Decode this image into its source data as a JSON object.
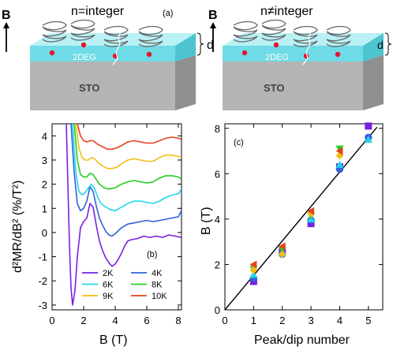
{
  "panel_a": {
    "title": "n=integer",
    "label": "(a)",
    "field_label": "B",
    "layer_label": "2DEG",
    "substrate_label": "STO",
    "thickness_label": "d"
  },
  "panel_b_schematic": {
    "title": "n≠integer",
    "field_label": "B",
    "layer_label": "2DEG",
    "substrate_label": "STO",
    "thickness_label": "d"
  },
  "colors": {
    "film": "#7fe3ec",
    "substrate": "#b4b4b4",
    "electron": "#e8132b",
    "2K": "#7a1fe0",
    "4K": "#2f62d8",
    "6K": "#22d6ee",
    "8K": "#27cc21",
    "9K": "#f2bd16",
    "10K": "#e3431c"
  },
  "chart_data": [
    {
      "type": "line",
      "panel_label": "(b)",
      "xlabel": "B (T)",
      "ylabel": "d²MR/dB² (%/T²)",
      "xlim": [
        0,
        8.2
      ],
      "ylim": [
        -3.2,
        4.5
      ],
      "xticks": [
        0,
        2,
        4,
        6,
        8
      ],
      "yticks": [
        -3,
        -2,
        -1,
        0,
        1,
        2,
        3,
        4
      ],
      "legend_position": "bottom-right",
      "series": [
        {
          "name": "2K",
          "color": "#7a1fe0",
          "x": [
            0.9,
            1.0,
            1.1,
            1.2,
            1.3,
            1.45,
            1.6,
            1.8,
            2.0,
            2.2,
            2.4,
            2.6,
            2.8,
            3.0,
            3.2,
            3.4,
            3.6,
            3.8,
            4.0,
            4.2,
            4.4,
            4.6,
            4.8,
            5.0,
            5.4,
            5.8,
            6.2,
            6.6,
            7.0,
            7.4,
            7.8,
            8.2
          ],
          "y": [
            4.5,
            2.0,
            -0.5,
            -2.3,
            -3.0,
            -2.4,
            -1.0,
            0.2,
            0.45,
            0.6,
            1.2,
            1.05,
            0.3,
            -0.35,
            -0.75,
            -1.05,
            -1.25,
            -1.4,
            -1.3,
            -1.1,
            -0.85,
            -0.55,
            -0.35,
            -0.3,
            -0.25,
            -0.15,
            -0.2,
            -0.15,
            -0.2,
            -0.1,
            -0.15,
            -0.2
          ]
        },
        {
          "name": "4K",
          "color": "#2f62d8",
          "x": [
            1.2,
            1.4,
            1.6,
            1.8,
            2.0,
            2.2,
            2.4,
            2.6,
            2.8,
            3.0,
            3.2,
            3.4,
            3.6,
            3.8,
            4.0,
            4.4,
            4.8,
            5.2,
            5.6,
            6.0,
            6.4,
            6.8,
            7.2,
            7.6,
            8.0,
            8.2
          ],
          "y": [
            4.5,
            2.5,
            1.2,
            0.9,
            1.0,
            1.3,
            1.9,
            1.7,
            1.1,
            0.6,
            0.3,
            0.05,
            -0.1,
            -0.15,
            -0.05,
            0.2,
            0.35,
            0.4,
            0.45,
            0.5,
            0.45,
            0.5,
            0.55,
            0.6,
            0.65,
            0.9
          ]
        },
        {
          "name": "6K",
          "color": "#22d6ee",
          "x": [
            1.3,
            1.5,
            1.7,
            1.9,
            2.1,
            2.3,
            2.5,
            2.7,
            2.9,
            3.1,
            3.4,
            3.7,
            4.0,
            4.4,
            4.8,
            5.2,
            5.6,
            6.0,
            6.4,
            6.8,
            7.2,
            7.6,
            8.0,
            8.2
          ],
          "y": [
            4.5,
            2.5,
            1.7,
            1.55,
            1.65,
            1.85,
            2.0,
            1.8,
            1.45,
            1.2,
            1.05,
            0.95,
            0.9,
            1.05,
            1.2,
            1.3,
            1.3,
            1.25,
            1.2,
            1.3,
            1.45,
            1.55,
            1.6,
            1.8
          ]
        },
        {
          "name": "8K",
          "color": "#27cc21",
          "x": [
            1.4,
            1.6,
            1.8,
            2.0,
            2.2,
            2.4,
            2.6,
            2.8,
            3.0,
            3.3,
            3.6,
            4.0,
            4.4,
            4.8,
            5.2,
            5.6,
            6.0,
            6.4,
            6.8,
            7.2,
            7.6,
            8.0,
            8.2
          ],
          "y": [
            4.5,
            3.0,
            2.4,
            2.3,
            2.3,
            2.45,
            2.4,
            2.2,
            2.0,
            1.85,
            1.8,
            1.85,
            2.0,
            2.1,
            2.15,
            2.1,
            2.05,
            2.1,
            2.25,
            2.35,
            2.35,
            2.3,
            2.2
          ]
        },
        {
          "name": "9K",
          "color": "#f2bd16",
          "x": [
            1.5,
            1.7,
            1.9,
            2.1,
            2.3,
            2.5,
            2.7,
            2.9,
            3.2,
            3.5,
            3.8,
            4.1,
            4.4,
            4.8,
            5.2,
            5.6,
            6.0,
            6.4,
            6.8,
            7.2,
            7.6,
            8.0,
            8.2
          ],
          "y": [
            4.5,
            3.5,
            3.1,
            3.0,
            3.0,
            3.1,
            3.05,
            2.9,
            2.75,
            2.65,
            2.65,
            2.7,
            2.85,
            3.0,
            3.05,
            3.0,
            2.95,
            2.95,
            3.1,
            3.2,
            3.2,
            3.15,
            3.1
          ]
        },
        {
          "name": "10K",
          "color": "#e3431c",
          "x": [
            1.6,
            1.8,
            2.0,
            2.2,
            2.4,
            2.6,
            2.9,
            3.2,
            3.5,
            3.8,
            4.1,
            4.4,
            4.8,
            5.2,
            5.6,
            6.0,
            6.4,
            6.8,
            7.2,
            7.6,
            8.0,
            8.2
          ],
          "y": [
            4.5,
            4.0,
            3.8,
            3.75,
            3.8,
            3.8,
            3.65,
            3.55,
            3.45,
            3.45,
            3.5,
            3.6,
            3.75,
            3.8,
            3.75,
            3.7,
            3.7,
            3.8,
            3.9,
            3.95,
            3.9,
            3.85
          ]
        }
      ]
    },
    {
      "type": "scatter",
      "panel_label": "(c)",
      "xlabel": "Peak/dip number",
      "ylabel": "B (T)",
      "xlim": [
        0,
        5.5
      ],
      "ylim": [
        0,
        8.2
      ],
      "xticks": [
        0,
        1,
        2,
        3,
        4,
        5
      ],
      "yticks": [
        0,
        2,
        4,
        6,
        8
      ],
      "series": [
        {
          "name": "2K",
          "marker": "square",
          "color": "#7a1fe0",
          "x": [
            1,
            2,
            3,
            4,
            5
          ],
          "y": [
            1.25,
            2.55,
            3.8,
            6.3,
            8.1
          ]
        },
        {
          "name": "4K",
          "marker": "circle",
          "color": "#2f62d8",
          "x": [
            1,
            2,
            3,
            4,
            5
          ],
          "y": [
            1.4,
            2.45,
            3.95,
            6.2,
            7.6
          ]
        },
        {
          "name": "6K",
          "marker": "triangle-up",
          "color": "#22d6ee",
          "x": [
            1,
            2,
            3,
            4,
            5
          ],
          "y": [
            1.55,
            2.5,
            4.0,
            6.4,
            7.5
          ]
        },
        {
          "name": "8K",
          "marker": "triangle-down",
          "color": "#27cc21",
          "x": [
            1,
            2,
            3,
            4
          ],
          "y": [
            1.8,
            2.65,
            4.15,
            7.1
          ]
        },
        {
          "name": "9K",
          "marker": "diamond",
          "color": "#f2bd16",
          "x": [
            1,
            2,
            3,
            4
          ],
          "y": [
            1.75,
            2.45,
            4.25,
            6.8
          ]
        },
        {
          "name": "10K",
          "marker": "triangle-left",
          "color": "#e3431c",
          "x": [
            1,
            2,
            3,
            4
          ],
          "y": [
            2.0,
            2.8,
            4.35,
            7.0
          ]
        }
      ],
      "fit_line": {
        "x": [
          0,
          5.3
        ],
        "y": [
          0,
          8.05
        ]
      }
    }
  ]
}
